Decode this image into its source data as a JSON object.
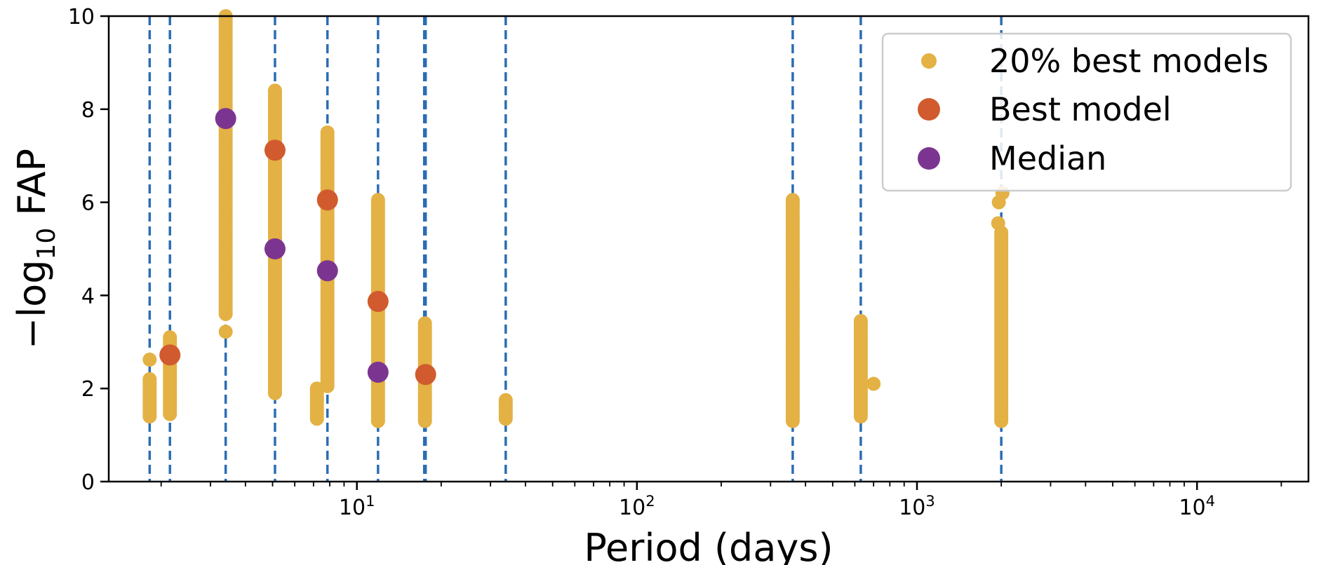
{
  "chart_data": {
    "type": "scatter",
    "xscale": "log",
    "xlim": [
      1.3,
      25000
    ],
    "ylim": [
      0,
      10
    ],
    "xlabel": "Period (days)",
    "ylabel_main": "−log",
    "ylabel_sub": "10",
    "ylabel_tail": " FAP",
    "x_ticks": [
      {
        "value": 10,
        "base": "10",
        "exp": "1"
      },
      {
        "value": 100,
        "base": "10",
        "exp": "2"
      },
      {
        "value": 1000,
        "base": "10",
        "exp": "3"
      },
      {
        "value": 10000,
        "base": "10",
        "exp": "4"
      }
    ],
    "y_ticks": [
      "0",
      "2",
      "4",
      "6",
      "8",
      "10"
    ],
    "vertical_lines": [
      1.82,
      2.15,
      3.4,
      5.1,
      7.85,
      11.9,
      17.4,
      17.6,
      34.0,
      360,
      630,
      2000
    ],
    "legend_position": "top-right",
    "colors": {
      "best_models": "#e3b144",
      "best_model": "#d15b2e",
      "median": "#7b3591",
      "vline": "#2b6db3"
    },
    "series": [
      {
        "name": "20% best models",
        "ranges": [
          {
            "x": 1.82,
            "ymin": 1.4,
            "ymax": 2.2
          },
          {
            "x": 2.15,
            "ymin": 1.45,
            "ymax": 3.1
          },
          {
            "x": 3.4,
            "ymin": 3.6,
            "ymax": 10.0
          },
          {
            "x": 5.1,
            "ymin": 1.9,
            "ymax": 8.4
          },
          {
            "x": 7.85,
            "ymin": 2.05,
            "ymax": 7.5
          },
          {
            "x": 7.2,
            "ymin": 1.35,
            "ymax": 2.0
          },
          {
            "x": 11.9,
            "ymin": 1.3,
            "ymax": 6.05
          },
          {
            "x": 17.5,
            "ymin": 1.3,
            "ymax": 3.4
          },
          {
            "x": 34.0,
            "ymin": 1.35,
            "ymax": 1.75
          },
          {
            "x": 360,
            "ymin": 1.3,
            "ymax": 6.05
          },
          {
            "x": 630,
            "ymin": 1.4,
            "ymax": 3.45
          },
          {
            "x": 2000,
            "ymin": 1.3,
            "ymax": 5.35
          }
        ],
        "points": [
          {
            "x": 1.82,
            "y": 2.62
          },
          {
            "x": 3.4,
            "y": 3.22
          },
          {
            "x": 700,
            "y": 2.1
          },
          {
            "x": 1950,
            "y": 5.55
          },
          {
            "x": 1960,
            "y": 6.0
          },
          {
            "x": 2020,
            "y": 6.2
          }
        ]
      },
      {
        "name": "Best model",
        "points": [
          {
            "x": 2.15,
            "y": 2.72
          },
          {
            "x": 5.1,
            "y": 7.12
          },
          {
            "x": 7.85,
            "y": 6.05
          },
          {
            "x": 11.9,
            "y": 3.87
          },
          {
            "x": 17.6,
            "y": 2.3
          }
        ]
      },
      {
        "name": "Median",
        "points": [
          {
            "x": 3.4,
            "y": 7.8
          },
          {
            "x": 5.1,
            "y": 5.0
          },
          {
            "x": 7.85,
            "y": 4.53
          },
          {
            "x": 11.9,
            "y": 2.35
          }
        ]
      }
    ]
  }
}
